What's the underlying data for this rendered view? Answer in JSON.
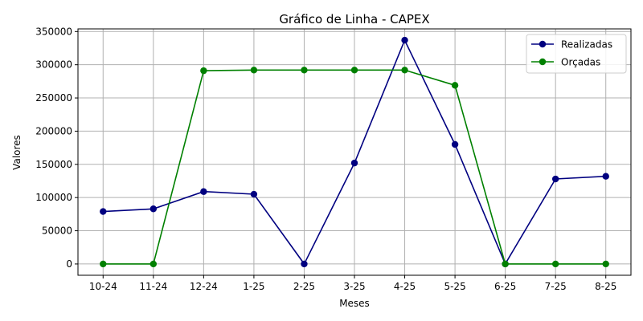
{
  "chart_data": {
    "type": "line",
    "title": "Gráfico de Linha - CAPEX",
    "xlabel": "Meses",
    "ylabel": "Valores",
    "categories": [
      "10-24",
      "11-24",
      "12-24",
      "1-25",
      "2-25",
      "3-25",
      "4-25",
      "5-25",
      "6-25",
      "7-25",
      "8-25"
    ],
    "ylim": [
      -17000,
      354000
    ],
    "yticks": [
      0,
      50000,
      100000,
      150000,
      200000,
      250000,
      300000,
      350000
    ],
    "grid": true,
    "legend_position": "top-right",
    "series": [
      {
        "name": "Realizadas",
        "color": "#000080",
        "values": [
          79000,
          83000,
          109000,
          105000,
          0,
          152000,
          337000,
          180000,
          0,
          128000,
          132000
        ]
      },
      {
        "name": "Orçadas",
        "color": "#008000",
        "values": [
          0,
          0,
          291000,
          292000,
          292000,
          292000,
          292000,
          269000,
          0,
          0,
          0
        ]
      }
    ]
  }
}
